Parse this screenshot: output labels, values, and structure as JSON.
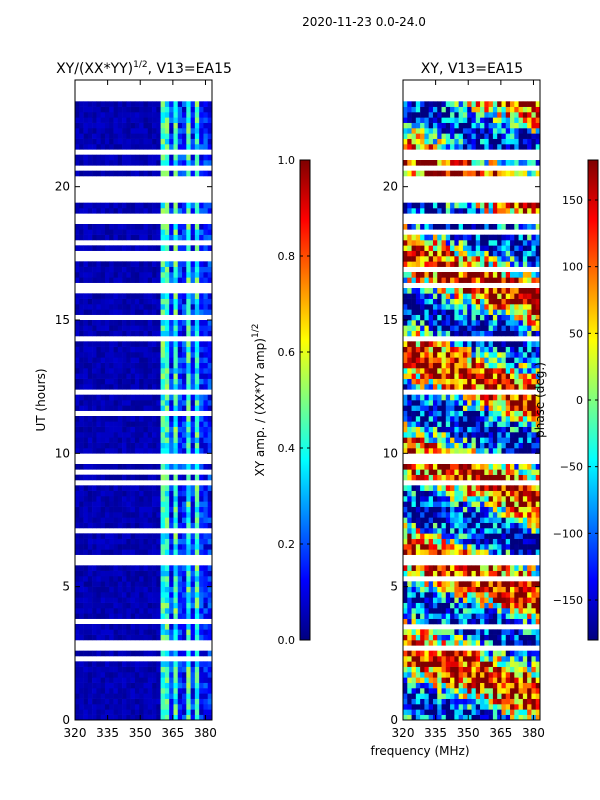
{
  "figure_title": "2020-11-23 0.0-24.0",
  "colors": {
    "jet": [
      "#00007f",
      "#0000ff",
      "#007fff",
      "#00ffff",
      "#7fff7f",
      "#ffff00",
      "#ff7f00",
      "#ff0000",
      "#7f0000"
    ],
    "background": "#ffffff"
  },
  "chart_data": [
    {
      "type": "heatmap",
      "title": "XY/(XX*YY)",
      "title_exponent": "1/2",
      "title_suffix": ", V13=EA15",
      "ylabel": "UT (hours)",
      "xlabel": "",
      "xlim": [
        320,
        383
      ],
      "ylim": [
        0,
        24
      ],
      "xticks": [
        320,
        335,
        350,
        365,
        380
      ],
      "xtick_labels": [
        "320",
        "335",
        "350",
        "365",
        "380"
      ],
      "yticks": [
        0,
        5,
        10,
        15,
        20
      ],
      "ytick_labels": [
        "0",
        "5",
        "10",
        "15",
        "20"
      ],
      "bright_channel_bands_mhz": [
        [
          360,
          363
        ],
        [
          365,
          368
        ],
        [
          371,
          373
        ],
        [
          375,
          378
        ]
      ],
      "colorbar": {
        "label_main": "XY amp. / (XX*YY amp)",
        "label_exponent": "1/2",
        "range": [
          0.0,
          1.0
        ],
        "ticks": [
          0.0,
          0.2,
          0.4,
          0.6,
          0.8,
          1.0
        ],
        "tick_labels": [
          "0.0",
          "0.2",
          "0.4",
          "0.6",
          "0.8",
          "1.0"
        ]
      }
    },
    {
      "type": "heatmap",
      "title": "XY, V13=EA15",
      "ylabel": "",
      "xlabel": "frequency (MHz)",
      "xlim": [
        320,
        383
      ],
      "ylim": [
        0,
        24
      ],
      "xticks": [
        320,
        335,
        350,
        365,
        380
      ],
      "xtick_labels": [
        "320",
        "335",
        "350",
        "365",
        "380"
      ],
      "yticks": [
        0,
        5,
        10,
        15,
        20
      ],
      "ytick_labels": [
        "0",
        "5",
        "10",
        "15",
        "20"
      ],
      "colorbar": {
        "label_main": "phase (deg.)",
        "range": [
          -180,
          180
        ],
        "ticks": [
          -150,
          -100,
          -50,
          0,
          50,
          100,
          150
        ],
        "tick_labels": [
          "−150",
          "−100",
          "−50",
          "0",
          "50",
          "100",
          "150"
        ]
      }
    }
  ],
  "data_gaps_hours": [
    [
      23.3,
      24.0
    ],
    [
      21.3,
      21.5
    ],
    [
      20.6,
      20.8
    ],
    [
      19.4,
      20.5
    ],
    [
      18.7,
      19.0
    ],
    [
      14.2,
      14.4
    ],
    [
      12.3,
      12.4
    ],
    [
      9.7,
      10.0
    ],
    [
      8.9,
      9.0
    ],
    [
      5.9,
      6.2
    ],
    [
      2.7,
      2.8
    ],
    [
      0.6,
      0.7
    ]
  ]
}
